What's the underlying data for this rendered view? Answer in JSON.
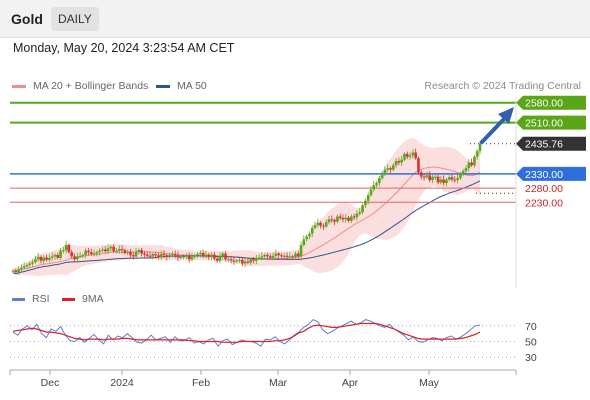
{
  "header": {
    "symbol": "Gold",
    "timeframe": "DAILY"
  },
  "datetime": "Monday, May 20, 2024 3:23:54 AM CET",
  "credit": "Research © 2024 Trading Central",
  "legend": [
    {
      "label": "MA 20 + Bollinger Bands",
      "color": "#f08c8c"
    },
    {
      "label": "MA 50",
      "color": "#2f5496"
    }
  ],
  "rsi_legend": [
    {
      "label": "RSI",
      "color": "#5b7fd6"
    },
    {
      "label": "9MA",
      "color": "#e02020"
    }
  ],
  "colors": {
    "resistance": "#5aa617",
    "support_blue": "#2e6fde",
    "support_red": "#e06666",
    "last_price": "#333333",
    "bollinger_fill": "#f9d3d3",
    "candle_up": "#5aa617",
    "candle_down": "#d83232",
    "arrow": "#2f5fae"
  },
  "chart_data": [
    {
      "type": "candlestick",
      "price_levels": [
        {
          "value": 2580.0,
          "label": "2580.00",
          "kind": "resistance"
        },
        {
          "value": 2510.0,
          "label": "2510.00",
          "kind": "resistance"
        },
        {
          "value": 2435.76,
          "label": "2435.76",
          "kind": "last"
        },
        {
          "value": 2330.0,
          "label": "2330.00",
          "kind": "pivot"
        },
        {
          "value": 2280.0,
          "label": "2280.00",
          "kind": "support"
        },
        {
          "value": 2230.0,
          "label": "2230.00",
          "kind": "support"
        }
      ],
      "x_ticks": [
        "Dec",
        "2024",
        "Feb",
        "Mar",
        "Apr",
        "May"
      ],
      "ylim": [
        1950,
        2600
      ],
      "indicators": [
        "MA 20 + Bollinger Bands",
        "MA 50"
      ],
      "close_series": [
        1990,
        1985,
        1995,
        2000,
        2005,
        2010,
        2015,
        2020,
        2030,
        2038,
        2025,
        2036,
        2028,
        2035,
        2040,
        2045,
        2035,
        2060,
        2062,
        2080,
        2055,
        2040,
        2030,
        2040,
        2042,
        2045,
        2060,
        2055,
        2048,
        2050,
        2055,
        2060,
        2064,
        2058,
        2068,
        2074,
        2058,
        2060,
        2066,
        2062,
        2052,
        2056,
        2044,
        2040,
        2055,
        2062,
        2050,
        2046,
        2042,
        2040,
        2048,
        2044,
        2036,
        2048,
        2044,
        2038,
        2045,
        2048,
        2044,
        2036,
        2038,
        2040,
        2042,
        2030,
        2038,
        2044,
        2048,
        2052,
        2040,
        2046,
        2038,
        2046,
        2032,
        2025,
        2040,
        2050,
        2030,
        2030,
        2026,
        2022,
        2025,
        2028,
        2015,
        2022,
        2018,
        2030,
        2025,
        2035,
        2035,
        2040,
        2045,
        2040,
        2035,
        2042,
        2050,
        2044,
        2040,
        2042,
        2040,
        2040,
        2038,
        2050,
        2040,
        2080,
        2100,
        2110,
        2120,
        2140,
        2150,
        2158,
        2148,
        2145,
        2160,
        2170,
        2168,
        2162,
        2180,
        2175,
        2170,
        2176,
        2165,
        2180,
        2178,
        2190,
        2195,
        2220,
        2235,
        2255,
        2275,
        2290,
        2298,
        2315,
        2330,
        2345,
        2350,
        2345,
        2360,
        2375,
        2370,
        2380,
        2400,
        2390,
        2395,
        2405,
        2385,
        2335,
        2320,
        2318,
        2325,
        2308,
        2320,
        2320,
        2300,
        2310,
        2298,
        2310,
        2318,
        2310,
        2308,
        2315,
        2330,
        2340,
        2350,
        2370,
        2360,
        2390,
        2410,
        2436
      ],
      "ma50_end": 2285,
      "bollinger_upper_end": 2395,
      "bollinger_lower_end": 2300
    },
    {
      "type": "line",
      "title": "RSI",
      "series": [
        {
          "name": "RSI",
          "values": [
            62,
            58,
            66,
            70,
            65,
            72,
            60,
            55,
            66,
            63,
            69,
            58,
            51,
            50,
            55,
            49,
            54,
            59,
            52,
            47,
            58,
            52,
            57,
            55,
            60,
            55,
            49,
            48,
            52,
            58,
            52,
            54,
            56,
            49,
            56,
            51,
            51,
            55,
            48,
            50,
            47,
            52,
            54,
            44,
            51,
            53,
            46,
            49,
            52,
            50,
            50,
            48,
            44,
            53,
            52,
            56,
            50,
            47,
            52,
            58,
            62,
            68,
            72,
            78,
            75,
            65,
            60,
            63,
            67,
            70,
            73,
            76,
            72,
            74,
            78,
            76,
            73,
            70,
            68,
            72,
            66,
            62,
            58,
            52,
            56,
            50,
            49,
            52,
            55,
            54,
            51,
            55,
            57,
            53,
            56,
            60,
            65,
            70,
            71
          ]
        },
        {
          "name": "9MA",
          "values": [
            63,
            64,
            65,
            66,
            67,
            66,
            64,
            62,
            62,
            61,
            60,
            58,
            56,
            54,
            53,
            52,
            53,
            53,
            53,
            52,
            53,
            53,
            53,
            54,
            54,
            53,
            52,
            52,
            52,
            52,
            52,
            52,
            52,
            52,
            52,
            52,
            52,
            51,
            51,
            50,
            50,
            50,
            50,
            50,
            49,
            49,
            49,
            49,
            50,
            50,
            50,
            50,
            50,
            50,
            50,
            51,
            51,
            52,
            54,
            57,
            61,
            63,
            67,
            70,
            71,
            70,
            69,
            68,
            68,
            69,
            70,
            71,
            72,
            73,
            73,
            73,
            73,
            72,
            70,
            68,
            66,
            63,
            60,
            58,
            56,
            54,
            53,
            53,
            53,
            53,
            53,
            53,
            53,
            53,
            54,
            55,
            57,
            59,
            62
          ]
        }
      ],
      "y_ticks": [
        "70",
        "50",
        "30"
      ],
      "ylim": [
        20,
        80
      ]
    }
  ]
}
